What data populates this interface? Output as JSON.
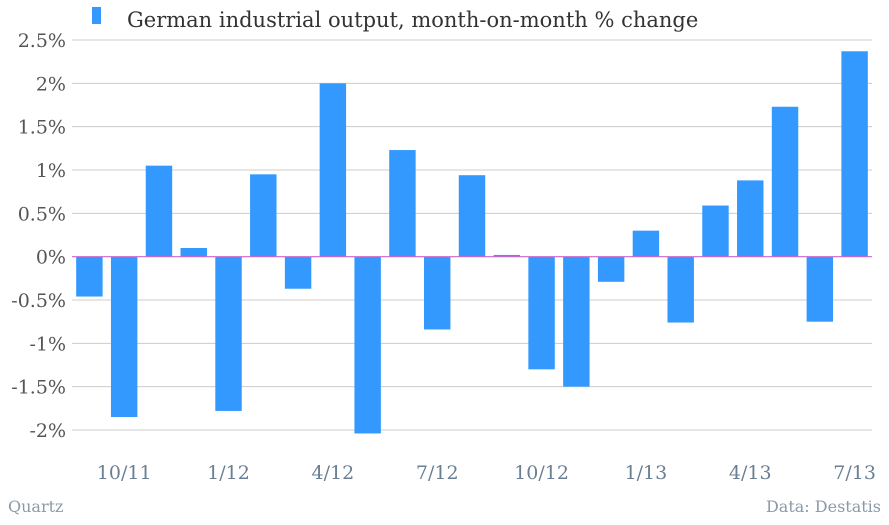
{
  "chart_data": {
    "type": "bar",
    "title": "",
    "xlabel": "",
    "ylabel": "",
    "ylim": [
      -2.25,
      2.5
    ],
    "yticks": [
      2.5,
      2,
      1.5,
      1,
      0.5,
      0,
      -0.5,
      -1,
      -1.5,
      -2
    ],
    "ytick_labels": [
      "2.5%",
      "2%",
      "1.5%",
      "1%",
      "0.5%",
      "0%",
      "-0.5%",
      "-1%",
      "-1.5%",
      "-2%"
    ],
    "grid": true,
    "legend_position": "top-left",
    "categories": [
      "9/11",
      "10/11",
      "11/11",
      "12/11",
      "1/12",
      "2/12",
      "3/12",
      "4/12",
      "5/12",
      "6/12",
      "7/12",
      "8/12",
      "9/12",
      "10/12",
      "11/12",
      "12/12",
      "1/13",
      "2/13",
      "3/13",
      "4/13",
      "5/13",
      "6/13",
      "7/13"
    ],
    "xtick_labels": [
      {
        "index": 1,
        "label": "10/11"
      },
      {
        "index": 4,
        "label": "1/12"
      },
      {
        "index": 7,
        "label": "4/12"
      },
      {
        "index": 10,
        "label": "7/12"
      },
      {
        "index": 13,
        "label": "10/12"
      },
      {
        "index": 16,
        "label": "1/13"
      },
      {
        "index": 19,
        "label": "4/13"
      },
      {
        "index": 22,
        "label": "7/13"
      }
    ],
    "series": [
      {
        "name": "German industrial output, month-on-month % change",
        "color": "#3399ff",
        "values": [
          -0.46,
          -1.85,
          1.05,
          0.1,
          -1.78,
          0.95,
          -0.37,
          2.0,
          -2.04,
          1.23,
          -0.84,
          0.94,
          0.02,
          -1.3,
          -1.5,
          -0.29,
          0.3,
          -0.76,
          0.59,
          0.88,
          1.73,
          -0.75,
          2.37
        ]
      }
    ],
    "zero_line_color": "#cc66cc",
    "grid_color": "#cccccc"
  },
  "footer": {
    "source_left": "Quartz",
    "source_right": "Data: Destatis"
  }
}
